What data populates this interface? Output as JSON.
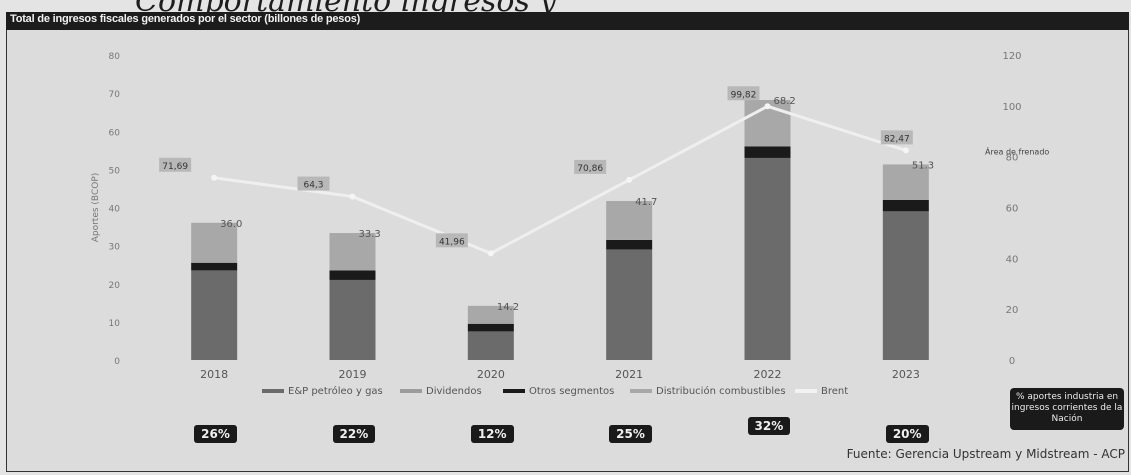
{
  "top_title": "Comportamiento ingresos y",
  "header": {
    "title": "Total de ingresos fiscales generados por el sector (billones de pesos)"
  },
  "chart_data": {
    "type": "bar",
    "stacked": true,
    "categories": [
      "2018",
      "2019",
      "2020",
      "2021",
      "2022",
      "2023"
    ],
    "y_left": {
      "label": "Aportes (BCOP)",
      "range": [
        0,
        80
      ],
      "ticks": [
        0,
        10,
        20,
        30,
        40,
        50,
        60,
        70,
        80
      ]
    },
    "y_right": {
      "label": "",
      "range": [
        0,
        120
      ],
      "ticks": [
        0,
        20,
        40,
        60,
        80,
        100,
        120
      ]
    },
    "series": [
      {
        "name": "E&P petróleo y gas",
        "color": "#6b6b6b",
        "values": [
          23.5,
          21.0,
          7.5,
          29.0,
          53.0,
          39.0
        ]
      },
      {
        "name": "Dividendos",
        "color": "#9c9c9c",
        "values": [
          0,
          0,
          0,
          0,
          0,
          0
        ]
      },
      {
        "name": "Otros segmentos",
        "color": "#1a1a1a",
        "values": [
          2.0,
          2.5,
          2.0,
          2.5,
          3.0,
          3.0
        ]
      },
      {
        "name": "Distribución combustibles",
        "color": "#a8a8a8",
        "values": [
          10.5,
          9.8,
          4.7,
          10.2,
          12.2,
          9.3
        ]
      }
    ],
    "totals": [
      "36.0",
      "33.3",
      "14.2",
      "41.7",
      "68.2",
      "51.3"
    ],
    "line": {
      "name": "Brent",
      "axis": "right",
      "color": "#efefef",
      "values": [
        71.69,
        64.3,
        41.96,
        70.86,
        99.82,
        82.47
      ],
      "labels": [
        "71,69",
        "64,3",
        "41,96",
        "70,86",
        "99,82",
        "82,47"
      ]
    },
    "legend_position": "bottom",
    "annotations": [
      {
        "text": "Área de frenado"
      }
    ]
  },
  "share_of_nation": {
    "values": [
      "26%",
      "22%",
      "12%",
      "25%",
      "32%",
      "20%"
    ],
    "label": "% aportes industria en ingresos corrientes de la Nación"
  },
  "source": "Fuente: Gerencia Upstream y Midstream - ACP"
}
